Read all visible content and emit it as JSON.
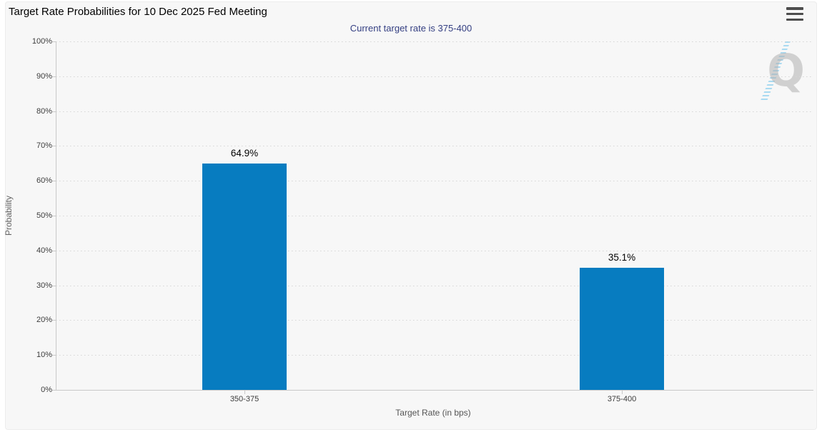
{
  "header": {
    "title": "Target Rate Probabilities for 10 Dec 2025 Fed Meeting",
    "menu_icon": "hamburger-menu-icon"
  },
  "watermark_letter": "Q",
  "colors": {
    "bar": "#077cc0",
    "subtitle_text": "#343f82",
    "panel_background": "#f7f7f7",
    "gridline": "#d6d6d6",
    "axis": "#c9c9c9"
  },
  "chart_data": {
    "type": "bar",
    "title": "Target Rate Probabilities for 10 Dec 2025 Fed Meeting",
    "subtitle": "Current target rate is 375-400",
    "categories": [
      "350-375",
      "375-400"
    ],
    "values": [
      64.9,
      35.1
    ],
    "value_labels": [
      "64.9%",
      "35.1%"
    ],
    "xlabel": "Target Rate (in bps)",
    "ylabel": "Probability",
    "ylim": [
      0,
      100
    ],
    "ytick_step": 10,
    "ytick_suffix": "%",
    "grid": "dotted-horizontal",
    "legend_position": "none",
    "bar_color": "#077cc0"
  }
}
